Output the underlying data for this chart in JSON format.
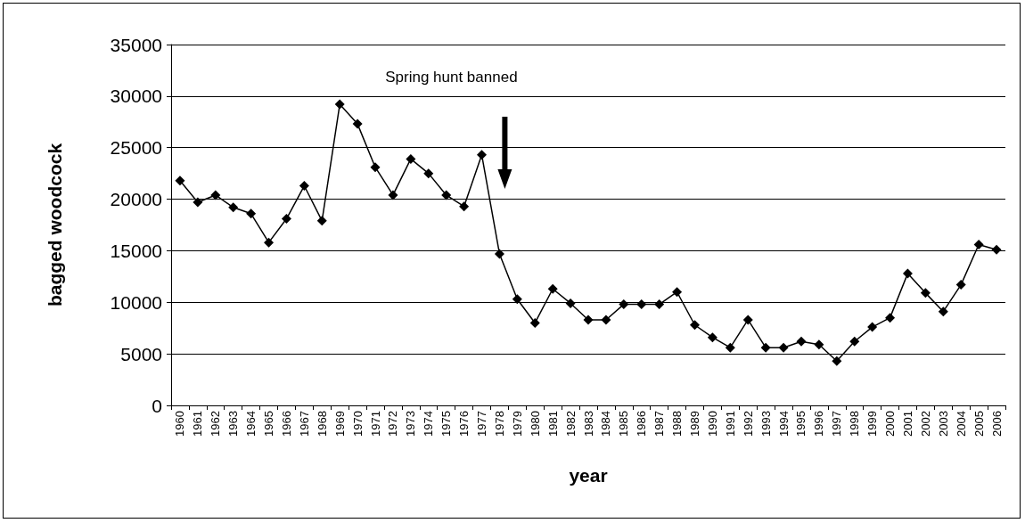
{
  "chart_data": {
    "type": "line",
    "xlabel": "year",
    "ylabel": "bagged woodcock",
    "categories": [
      "1960",
      "1961",
      "1962",
      "1963",
      "1964",
      "1965",
      "1966",
      "1967",
      "1968",
      "1969",
      "1970",
      "1971",
      "1972",
      "1973",
      "1974",
      "1975",
      "1976",
      "1977",
      "1978",
      "1979",
      "1980",
      "1981",
      "1982",
      "1983",
      "1984",
      "1985",
      "1986",
      "1987",
      "1988",
      "1989",
      "1990",
      "1991",
      "1992",
      "1993",
      "1994",
      "1995",
      "1996",
      "1997",
      "1998",
      "1999",
      "2000",
      "2001",
      "2002",
      "2003",
      "2004",
      "2005",
      "2006"
    ],
    "series": [
      {
        "color": "#000000",
        "values": [
          21800,
          19700,
          20400,
          19200,
          18600,
          15800,
          18100,
          21300,
          17900,
          29200,
          27300,
          23100,
          20400,
          23900,
          22500,
          20400,
          19300,
          24300,
          14700,
          10300,
          8000,
          11300,
          9900,
          8300,
          8300,
          9800,
          9800,
          9800,
          11000,
          7800,
          6600,
          5600,
          8300,
          5600,
          5600,
          6200,
          5900,
          4300,
          6200,
          7600,
          8500,
          12800,
          10900,
          9100,
          11700,
          15600,
          15100
        ]
      }
    ],
    "ylim": [
      0,
      35000
    ],
    "yticks": [
      0,
      5000,
      10000,
      15000,
      20000,
      25000,
      30000,
      35000
    ],
    "grid": "y",
    "marker": "diamond",
    "line_style": "solid",
    "annotations": [
      "Spring hunt banned"
    ]
  }
}
